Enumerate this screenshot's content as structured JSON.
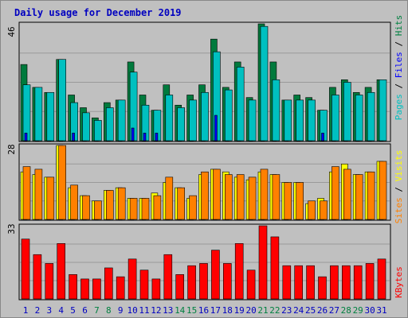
{
  "title": "Daily usage for December 2019",
  "legend": {
    "pages": "Pages",
    "files": "Files",
    "hits": "Hits",
    "sites": "Sites",
    "visits": "Visits",
    "kbytes": "KBytes",
    "sep": " / "
  },
  "colors": {
    "background": "#c0c0c0",
    "pages": "#00c0c0",
    "files": "#0000ff",
    "hits": "#008040",
    "sites": "#ff8000",
    "visits": "#ffff00",
    "kbytes": "#ff0000",
    "title": "#0000c0",
    "weekend_day": "#008040",
    "weekday": "#0000c0"
  },
  "chart_data": [
    {
      "type": "bar",
      "panel": "hits-files-pages",
      "ymax_label": "46",
      "ylim": [
        0,
        46
      ],
      "categories": [
        "1",
        "2",
        "3",
        "4",
        "5",
        "6",
        "7",
        "8",
        "9",
        "10",
        "11",
        "12",
        "13",
        "14",
        "15",
        "16",
        "17",
        "18",
        "19",
        "20",
        "21",
        "22",
        "23",
        "24",
        "25",
        "26",
        "27",
        "28",
        "29",
        "30",
        "31"
      ],
      "weekend": [
        7,
        8,
        14,
        15,
        21,
        22,
        28,
        29
      ],
      "series": [
        {
          "name": "Hits",
          "values": [
            30,
            21,
            19,
            32,
            18,
            13,
            9,
            15,
            16,
            31,
            18,
            12,
            22,
            14,
            18,
            22,
            40,
            21,
            31,
            17,
            46,
            31,
            16,
            18,
            17,
            12,
            21,
            24,
            19,
            21,
            24
          ]
        },
        {
          "name": "Files",
          "values": [
            3,
            0,
            0,
            0,
            3,
            0,
            0,
            0,
            0,
            5,
            3,
            3,
            0,
            0,
            0,
            0,
            10,
            0,
            0,
            0,
            0,
            0,
            0,
            0,
            0,
            3,
            0,
            0,
            0,
            0,
            0
          ]
        },
        {
          "name": "Pages",
          "values": [
            22,
            21,
            19,
            32,
            15,
            11,
            8,
            13,
            16,
            27,
            14,
            12,
            18,
            13,
            16,
            19,
            35,
            20,
            29,
            16,
            45,
            24,
            16,
            16,
            16,
            12,
            18,
            23,
            18,
            19,
            24
          ]
        }
      ]
    },
    {
      "type": "bar",
      "panel": "sites-visits",
      "ymax_label": "28",
      "ylim": [
        0,
        28
      ],
      "categories": [
        "1",
        "2",
        "3",
        "4",
        "5",
        "6",
        "7",
        "8",
        "9",
        "10",
        "11",
        "12",
        "13",
        "14",
        "15",
        "16",
        "17",
        "18",
        "19",
        "20",
        "21",
        "22",
        "23",
        "24",
        "25",
        "26",
        "27",
        "28",
        "29",
        "30",
        "31"
      ],
      "series": [
        {
          "name": "Visits",
          "values": [
            18,
            17,
            16,
            28,
            12,
            9,
            7,
            11,
            12,
            8,
            8,
            10,
            14,
            12,
            8,
            17,
            19,
            18,
            16,
            15,
            18,
            17,
            14,
            14,
            6,
            8,
            18,
            21,
            17,
            18,
            22
          ]
        },
        {
          "name": "Sites",
          "values": [
            20,
            19,
            16,
            28,
            13,
            9,
            7,
            11,
            12,
            8,
            8,
            9,
            16,
            12,
            9,
            18,
            19,
            17,
            17,
            16,
            19,
            17,
            14,
            14,
            7,
            7,
            20,
            19,
            17,
            18,
            22
          ]
        }
      ]
    },
    {
      "type": "bar",
      "panel": "kbytes",
      "ymax_label": "33",
      "ylim": [
        0,
        33
      ],
      "categories": [
        "1",
        "2",
        "3",
        "4",
        "5",
        "6",
        "7",
        "8",
        "9",
        "10",
        "11",
        "12",
        "13",
        "14",
        "15",
        "16",
        "17",
        "18",
        "19",
        "20",
        "21",
        "22",
        "23",
        "24",
        "25",
        "26",
        "27",
        "28",
        "29",
        "30",
        "31"
      ],
      "series": [
        {
          "name": "KBytes",
          "values": [
            27,
            20,
            16,
            25,
            11,
            9,
            9,
            14,
            10,
            18,
            13,
            9,
            20,
            11,
            15,
            16,
            22,
            16,
            25,
            13,
            33,
            28,
            15,
            15,
            15,
            10,
            15,
            15,
            15,
            16,
            18
          ]
        }
      ]
    }
  ]
}
